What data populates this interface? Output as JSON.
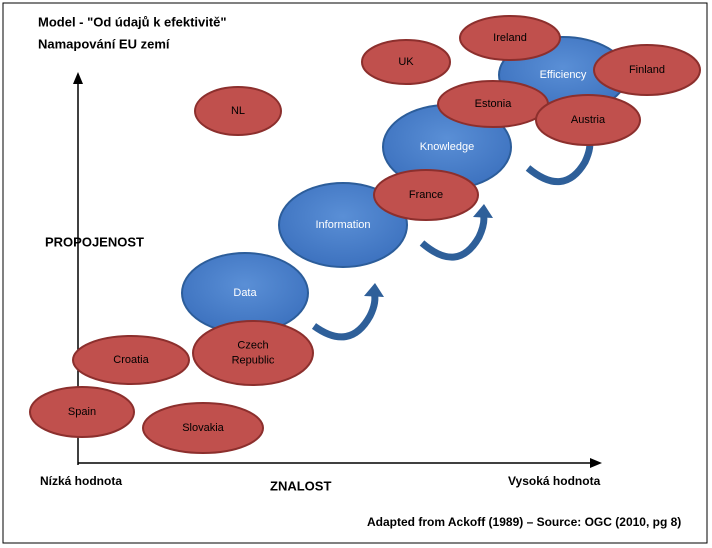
{
  "title": [
    "Model - \"Od údajů k efektivitě\"",
    "Namapování EU zemí"
  ],
  "axes": {
    "y_label": "PROPOJENOST",
    "x_label": "ZNALOST",
    "x_low": "Nízká hodnota",
    "x_high": "Vysoká hodnota"
  },
  "stages": [
    {
      "label": "Data"
    },
    {
      "label": "Information"
    },
    {
      "label": "Knowledge"
    },
    {
      "label": "Efficiency"
    }
  ],
  "countries": [
    {
      "lines": [
        "Ireland"
      ]
    },
    {
      "lines": [
        "UK"
      ]
    },
    {
      "lines": [
        "Finland"
      ]
    },
    {
      "lines": [
        "NL"
      ]
    },
    {
      "lines": [
        "Estonia"
      ]
    },
    {
      "lines": [
        "Austria"
      ]
    },
    {
      "lines": [
        "France"
      ]
    },
    {
      "lines": [
        "Croatia"
      ]
    },
    {
      "lines": [
        "Czech",
        "Republic"
      ]
    },
    {
      "lines": [
        "Spain"
      ]
    },
    {
      "lines": [
        "Slovakia"
      ]
    }
  ],
  "source": "Adapted from Ackoff (1989) – Source: OGC (2010, pg 8)"
}
